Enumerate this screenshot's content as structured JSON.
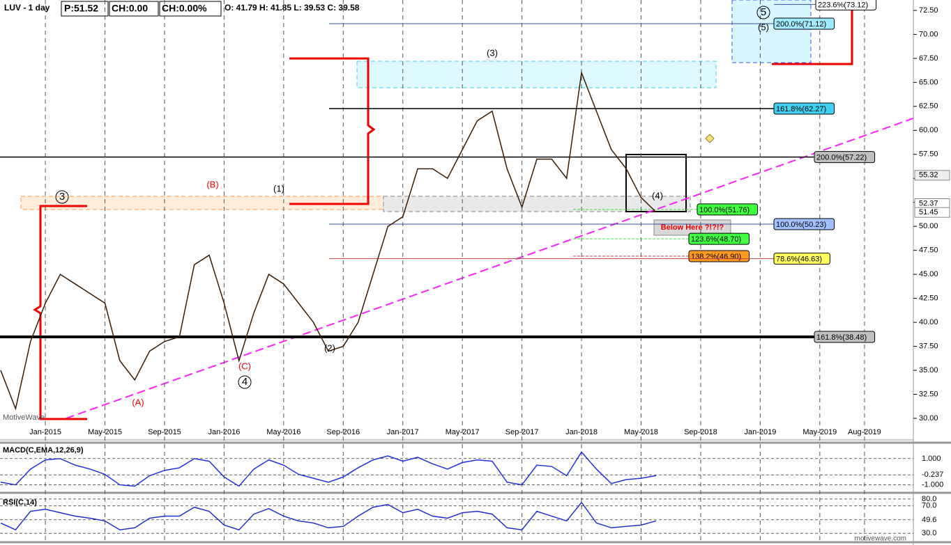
{
  "chart_data": {
    "type": "line",
    "title": "LUV - 1 day",
    "header": [
      "P:51.52",
      "CH:0.00",
      "CH:0.00%",
      "O: 41.79 H: 41.85 L: 39.53 C: 39.58"
    ],
    "x": [
      "Oct-2014",
      "Nov-2014",
      "Dec-2014",
      "Jan-2015",
      "Feb-2015",
      "Mar-2015",
      "Apr-2015",
      "May-2015",
      "Jun-2015",
      "Jul-2015",
      "Aug-2015",
      "Sep-2015",
      "Oct-2015",
      "Nov-2015",
      "Dec-2015",
      "Jan-2016",
      "Feb-2016",
      "Mar-2016",
      "Apr-2016",
      "May-2016",
      "Jun-2016",
      "Jul-2016",
      "Aug-2016",
      "Sep-2016",
      "Oct-2016",
      "Nov-2016",
      "Dec-2016",
      "Jan-2017",
      "Feb-2017",
      "Mar-2017",
      "Apr-2017",
      "May-2017",
      "Jun-2017",
      "Jul-2017",
      "Aug-2017",
      "Sep-2017",
      "Oct-2017",
      "Nov-2017",
      "Dec-2017",
      "Jan-2018",
      "Feb-2018",
      "Mar-2018",
      "Apr-2018",
      "May-2018",
      "Jun-2018"
    ],
    "series": [
      {
        "name": "LUV",
        "color": "#3a1a00",
        "values": [
          35,
          31,
          38,
          42,
          45,
          44,
          43,
          42,
          36,
          34,
          37,
          38,
          38.5,
          46,
          47,
          42,
          36,
          41,
          45,
          44,
          42,
          40,
          37,
          37.5,
          40,
          45,
          50,
          51,
          56,
          56,
          55,
          58,
          61,
          62,
          56,
          52,
          57,
          57,
          55,
          66,
          62,
          58,
          56,
          53,
          51.5
        ]
      }
    ],
    "xlim": [
      "Oct-2014",
      "Nov-2019"
    ],
    "xticks": [
      "Jan-2015",
      "May-2015",
      "Sep-2015",
      "Jan-2016",
      "May-2016",
      "Sep-2016",
      "Jan-2017",
      "May-2017",
      "Sep-2017",
      "Jan-2018",
      "May-2018",
      "Sep-2018",
      "Jan-2019",
      "May-2019",
      "Aug-2019"
    ],
    "ylim": [
      29,
      73.5
    ],
    "yticks": [
      {
        "value": 30,
        "label": "30.00"
      },
      {
        "value": 32.5,
        "label": "32.50"
      },
      {
        "value": 35,
        "label": "35.00"
      },
      {
        "value": 37.5,
        "label": "37.50"
      },
      {
        "value": 40,
        "label": "40.00"
      },
      {
        "value": 42.5,
        "label": "42.50"
      },
      {
        "value": 45,
        "label": "45.00"
      },
      {
        "value": 47.5,
        "label": "47.50"
      },
      {
        "value": 50,
        "label": "50.00"
      },
      {
        "value": 52.5,
        "label": "52.50"
      },
      {
        "value": 55,
        "label": "55.00"
      },
      {
        "value": 57.5,
        "label": "57.50"
      },
      {
        "value": 60,
        "label": "60.00"
      },
      {
        "value": 62.5,
        "label": "62.50"
      },
      {
        "value": 65,
        "label": "65.00"
      },
      {
        "value": 67.5,
        "label": "67.50"
      },
      {
        "value": 70,
        "label": "70.00"
      },
      {
        "value": 72.5,
        "label": "72.50"
      }
    ],
    "price_markers": [
      55.32,
      52.37,
      51.45
    ],
    "levels": [
      {
        "label": "223.6%(73.12)",
        "value": 73.12,
        "color": "#ffffff"
      },
      {
        "label": "200.0%(71.12)",
        "value": 71.12,
        "color": "#a0eaff"
      },
      {
        "label": "161.8%(62.27)",
        "value": 62.27,
        "color": "#40d0f0"
      },
      {
        "label": "200.0%(57.22)",
        "value": 57.22,
        "color": "#c0c0c0"
      },
      {
        "label": "100.0%(51.76)",
        "value": 51.76,
        "color": "#40ff40"
      },
      {
        "label": "100.0%(50.23)",
        "value": 50.23,
        "color": "#a0c0ff"
      },
      {
        "label": "123.6%(48.70)",
        "value": 48.7,
        "color": "#40ff40"
      },
      {
        "label": "138.2%(46.90)",
        "value": 46.9,
        "color": "#ff9a20"
      },
      {
        "label": "78.6%(46.63)",
        "value": 46.63,
        "color": "#ffff60"
      },
      {
        "label": "161.8%(38.48)",
        "value": 38.48,
        "color": "#c0c0c0"
      }
    ],
    "waves": [
      "(3)",
      "(1)",
      "(B)",
      "(2)",
      "(C)",
      "(4)",
      "(A)",
      "3",
      "4",
      "5",
      "(5)"
    ],
    "note": "Below Here ?!?!?",
    "watermark": "MotiveWave",
    "footer": "motivewave.com",
    "macd": {
      "title": "MACD(C,EMA,12,26,9)",
      "ylim": [
        -1.5,
        2
      ],
      "yticks": [
        {
          "value": 1,
          "label": "1.000"
        },
        {
          "value": -0.237,
          "label": "-0.237"
        },
        {
          "value": -1,
          "label": "-1.000"
        }
      ],
      "values": [
        -0.8,
        -1.0,
        0.2,
        0.9,
        1.0,
        0.5,
        0.2,
        -0.2,
        -1.0,
        -1.1,
        -0.3,
        0.1,
        0.3,
        1.0,
        0.8,
        -0.4,
        -1.1,
        0.2,
        0.9,
        0.5,
        -0.2,
        -0.5,
        -0.8,
        -0.4,
        0.3,
        0.9,
        1.2,
        0.8,
        1.1,
        0.6,
        0.2,
        0.7,
        0.9,
        0.8,
        -0.8,
        -1.0,
        0.5,
        0.4,
        -0.3,
        1.5,
        0.2,
        -0.9,
        -0.6,
        -0.5,
        -0.3
      ]
    },
    "rsi": {
      "title": "RSI(C,14)",
      "ylim": [
        20,
        85
      ],
      "yticks": [
        {
          "value": 80,
          "label": "80.0"
        },
        {
          "value": 70,
          "label": "70.0"
        },
        {
          "value": 49.6,
          "label": "49.6"
        },
        {
          "value": 30,
          "label": "30.0"
        }
      ],
      "values": [
        45,
        35,
        62,
        65,
        60,
        55,
        52,
        48,
        35,
        38,
        52,
        55,
        55,
        68,
        62,
        42,
        35,
        58,
        66,
        55,
        48,
        45,
        38,
        40,
        55,
        68,
        72,
        60,
        65,
        55,
        52,
        60,
        62,
        58,
        38,
        35,
        62,
        55,
        48,
        75,
        45,
        38,
        40,
        42,
        48
      ]
    }
  }
}
